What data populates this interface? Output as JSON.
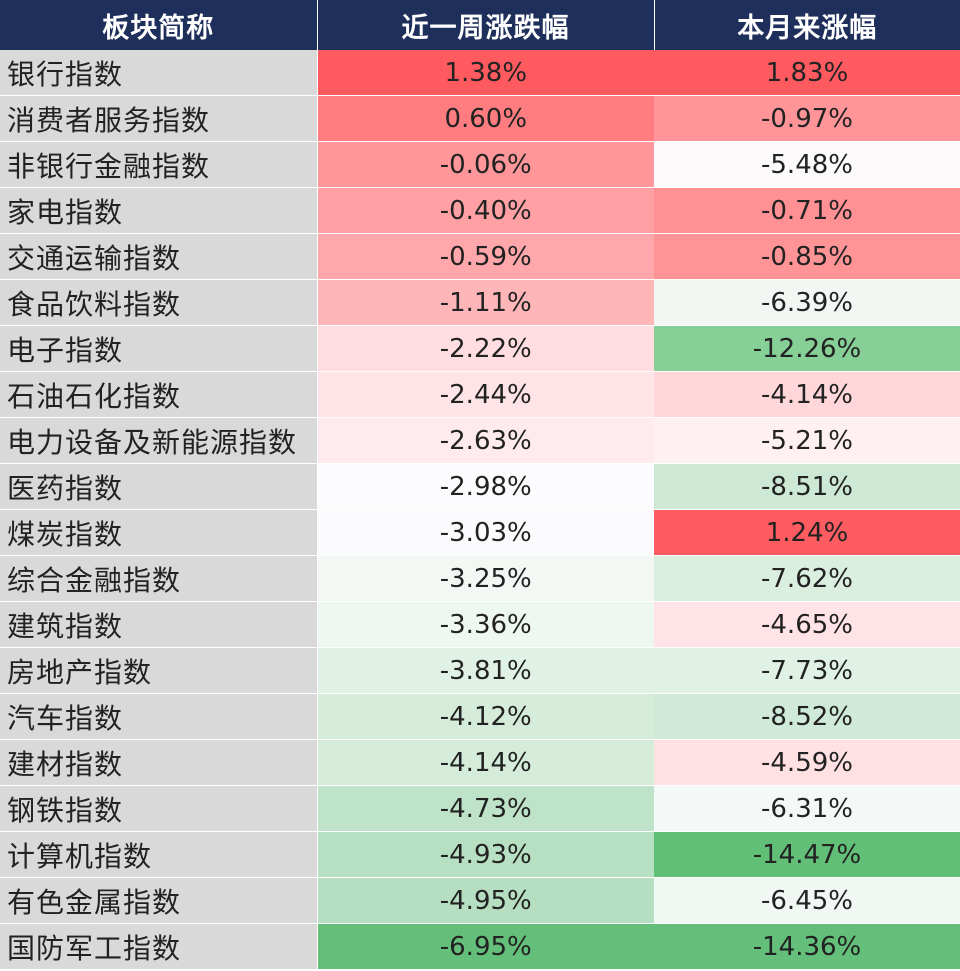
{
  "header": {
    "col_name": "板块简称",
    "col_week": "近一周涨跌幅",
    "col_month": "本月来涨幅"
  },
  "rows": [
    {
      "name": "银行指数",
      "week": "1.38%",
      "week_bg": "#ff5a5f",
      "month": "1.83%",
      "month_bg": "#ff5a5f"
    },
    {
      "name": "消费者服务指数",
      "week": "0.60%",
      "week_bg": "#ff7d81",
      "month": "-0.97%",
      "month_bg": "#ff9598"
    },
    {
      "name": "非银行金融指数",
      "week": "-0.06%",
      "week_bg": "#ff9699",
      "month": "-5.48%",
      "month_bg": "#fdfafc"
    },
    {
      "name": "家电指数",
      "week": "-0.40%",
      "week_bg": "#ffa1a4",
      "month": "-0.71%",
      "month_bg": "#ff9093"
    },
    {
      "name": "交通运输指数",
      "week": "-0.59%",
      "week_bg": "#ffa7aa",
      "month": "-0.85%",
      "month_bg": "#ff9497"
    },
    {
      "name": "食品饮料指数",
      "week": "-1.11%",
      "week_bg": "#ffb6b8",
      "month": "-6.39%",
      "month_bg": "#f2f7f3"
    },
    {
      "name": "电子指数",
      "week": "-2.22%",
      "week_bg": "#ffdde0",
      "month": "-12.26%",
      "month_bg": "#86cf96"
    },
    {
      "name": "石油石化指数",
      "week": "-2.44%",
      "week_bg": "#ffe4e7",
      "month": "-4.14%",
      "month_bg": "#ffd7da"
    },
    {
      "name": "电力设备及新能源指数",
      "week": "-2.63%",
      "week_bg": "#ffebee",
      "month": "-5.21%",
      "month_bg": "#fff0f2"
    },
    {
      "name": "医药指数",
      "week": "-2.98%",
      "week_bg": "#fcfbfe",
      "month": "-8.51%",
      "month_bg": "#cde9d5"
    },
    {
      "name": "煤炭指数",
      "week": "-3.03%",
      "week_bg": "#fbfbfd",
      "month": "1.24%",
      "month_bg": "#ff5c61"
    },
    {
      "name": "综合金融指数",
      "week": "-3.25%",
      "week_bg": "#f3f8f5",
      "month": "-7.62%",
      "month_bg": "#dbefe0"
    },
    {
      "name": "建筑指数",
      "week": "-3.36%",
      "week_bg": "#eff7f1",
      "month": "-4.65%",
      "month_bg": "#ffe3e6"
    },
    {
      "name": "房地产指数",
      "week": "-3.81%",
      "week_bg": "#e0f1e5",
      "month": "-7.73%",
      "month_bg": "#e0f1e5"
    },
    {
      "name": "汽车指数",
      "week": "-4.12%",
      "week_bg": "#d5ecdb",
      "month": "-8.52%",
      "month_bg": "#d0eada"
    },
    {
      "name": "建材指数",
      "week": "-4.14%",
      "week_bg": "#d5ecdb",
      "month": "-4.59%",
      "month_bg": "#ffe1e4"
    },
    {
      "name": "钢铁指数",
      "week": "-4.73%",
      "week_bg": "#bfe3c9",
      "month": "-6.31%",
      "month_bg": "#f4f8f6"
    },
    {
      "name": "计算机指数",
      "week": "-4.93%",
      "week_bg": "#b7e0c2",
      "month": "-14.47%",
      "month_bg": "#62bf78"
    },
    {
      "name": "有色金属指数",
      "week": "-4.95%",
      "week_bg": "#b6dfc1",
      "month": "-6.45%",
      "month_bg": "#f1f7f3"
    },
    {
      "name": "国防军工指数",
      "week": "-6.95%",
      "week_bg": "#63bf79",
      "month": "-14.36%",
      "month_bg": "#63bf79"
    }
  ]
}
